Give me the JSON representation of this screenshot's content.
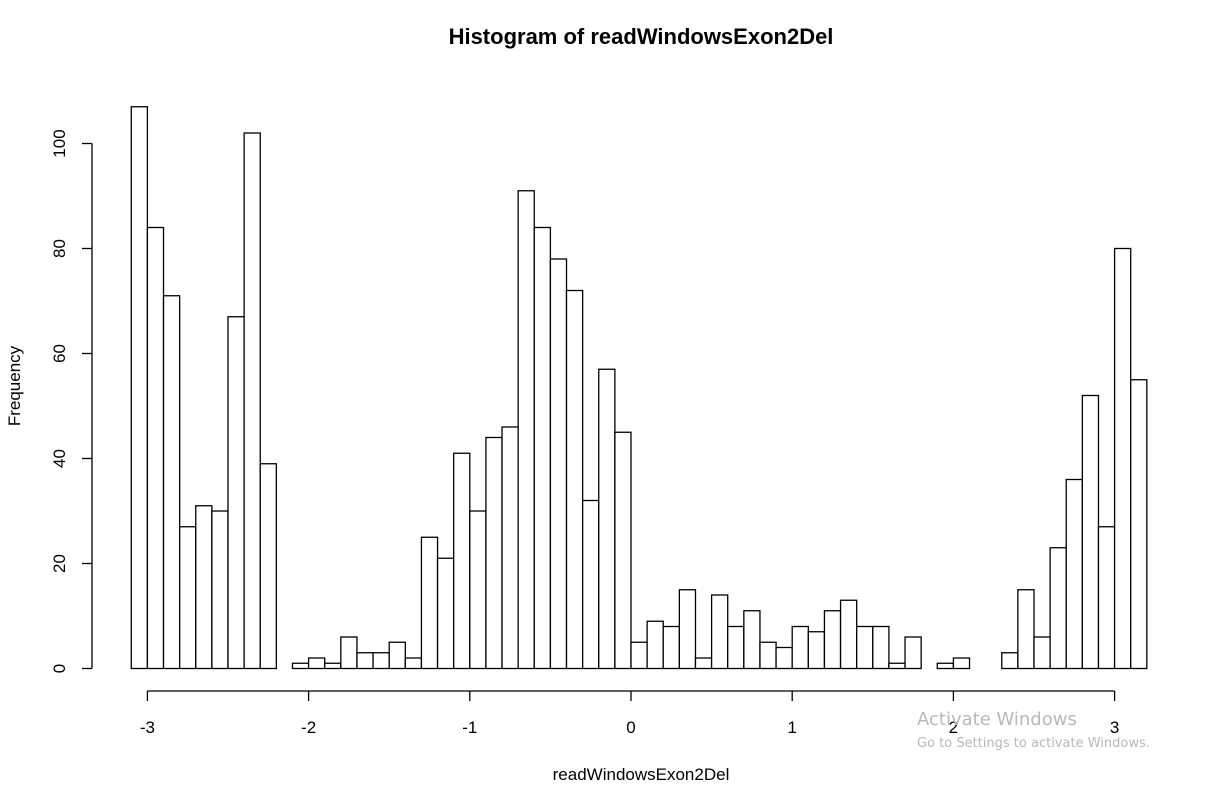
{
  "chart_data": {
    "type": "bar",
    "title": "Histogram of readWindowsExon2Del",
    "xlabel": "readWindowsExon2Del",
    "ylabel": "Frequency",
    "xlim": [
      -3.1,
      3.2
    ],
    "ylim": [
      0,
      107
    ],
    "xticks": [
      -3,
      -2,
      -1,
      0,
      1,
      2,
      3
    ],
    "yticks": [
      0,
      20,
      40,
      60,
      80,
      100
    ],
    "bin_start": -3.1,
    "bin_width": 0.1,
    "values": [
      107,
      84,
      71,
      27,
      31,
      30,
      67,
      102,
      39,
      0,
      1,
      2,
      1,
      6,
      3,
      3,
      5,
      2,
      25,
      21,
      41,
      30,
      44,
      46,
      91,
      84,
      78,
      72,
      32,
      57,
      45,
      5,
      9,
      8,
      15,
      2,
      14,
      8,
      11,
      5,
      4,
      8,
      7,
      11,
      13,
      8,
      8,
      1,
      6,
      0,
      1,
      2,
      0,
      0,
      3,
      15,
      6,
      23,
      36,
      52,
      27,
      80,
      55
    ]
  },
  "watermark": {
    "line1": "Activate Windows",
    "line2": "Go to Settings to activate Windows."
  }
}
